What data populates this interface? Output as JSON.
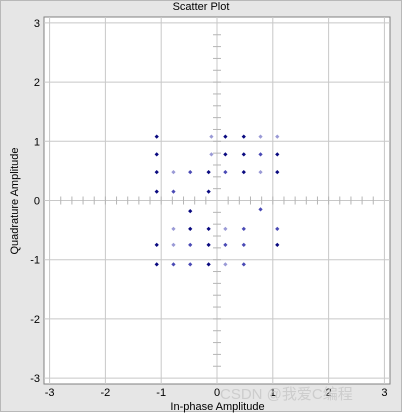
{
  "watermark": "CSDN @我爱C编程",
  "chart_data": {
    "type": "scatter",
    "title": "Scatter Plot",
    "xlabel": "In-phase Amplitude",
    "ylabel": "Quadrature Amplitude",
    "xlim": [
      -3.1,
      3.1
    ],
    "ylim": [
      -3.1,
      3.1
    ],
    "xticks": [
      "-3",
      "-2",
      "-1",
      "0",
      "1",
      "2",
      "3"
    ],
    "yticks": [
      "-3",
      "-2",
      "-1",
      "0",
      "1",
      "2",
      "3"
    ],
    "grid": true,
    "colors": {
      "dark": "#0a0a80",
      "mid": "#4a4ab5",
      "light": "#9a9ad6",
      "grid": "#c8c8c8",
      "axis_ticks": "#b5b5b5",
      "plot_bg": "#ffffff"
    },
    "points": [
      {
        "x": -1.08,
        "y": 1.08,
        "tone": "dark"
      },
      {
        "x": -0.1,
        "y": 1.08,
        "tone": "light"
      },
      {
        "x": 0.15,
        "y": 1.08,
        "tone": "dark"
      },
      {
        "x": 0.48,
        "y": 1.08,
        "tone": "dark"
      },
      {
        "x": 0.78,
        "y": 1.08,
        "tone": "light"
      },
      {
        "x": 1.08,
        "y": 1.08,
        "tone": "light"
      },
      {
        "x": -1.08,
        "y": 0.78,
        "tone": "dark"
      },
      {
        "x": -0.1,
        "y": 0.78,
        "tone": "light"
      },
      {
        "x": 0.15,
        "y": 0.78,
        "tone": "dark"
      },
      {
        "x": 0.48,
        "y": 0.78,
        "tone": "dark"
      },
      {
        "x": 0.78,
        "y": 0.78,
        "tone": "mid"
      },
      {
        "x": 1.08,
        "y": 0.78,
        "tone": "dark"
      },
      {
        "x": -1.08,
        "y": 0.48,
        "tone": "dark"
      },
      {
        "x": -0.78,
        "y": 0.48,
        "tone": "light"
      },
      {
        "x": -0.48,
        "y": 0.48,
        "tone": "mid"
      },
      {
        "x": -0.15,
        "y": 0.48,
        "tone": "dark"
      },
      {
        "x": 0.15,
        "y": 0.48,
        "tone": "mid"
      },
      {
        "x": 0.48,
        "y": 0.48,
        "tone": "dark"
      },
      {
        "x": 0.78,
        "y": 0.48,
        "tone": "light"
      },
      {
        "x": 1.08,
        "y": 0.48,
        "tone": "dark"
      },
      {
        "x": -1.08,
        "y": 0.15,
        "tone": "dark"
      },
      {
        "x": -0.78,
        "y": 0.15,
        "tone": "mid"
      },
      {
        "x": -0.15,
        "y": 0.15,
        "tone": "dark"
      },
      {
        "x": 0.78,
        "y": -0.15,
        "tone": "mid"
      },
      {
        "x": -0.48,
        "y": -0.18,
        "tone": "dark"
      },
      {
        "x": -0.78,
        "y": -0.48,
        "tone": "light"
      },
      {
        "x": -0.48,
        "y": -0.48,
        "tone": "dark"
      },
      {
        "x": -0.15,
        "y": -0.48,
        "tone": "dark"
      },
      {
        "x": 0.15,
        "y": -0.48,
        "tone": "light"
      },
      {
        "x": 0.48,
        "y": -0.48,
        "tone": "mid"
      },
      {
        "x": 1.08,
        "y": -0.48,
        "tone": "mid"
      },
      {
        "x": -1.08,
        "y": -0.75,
        "tone": "dark"
      },
      {
        "x": -0.78,
        "y": -0.75,
        "tone": "light"
      },
      {
        "x": -0.48,
        "y": -0.75,
        "tone": "mid"
      },
      {
        "x": -0.15,
        "y": -0.75,
        "tone": "dark"
      },
      {
        "x": 0.15,
        "y": -0.75,
        "tone": "mid"
      },
      {
        "x": 0.48,
        "y": -0.75,
        "tone": "mid"
      },
      {
        "x": 1.08,
        "y": -0.75,
        "tone": "dark"
      },
      {
        "x": -1.08,
        "y": -1.08,
        "tone": "dark"
      },
      {
        "x": -0.78,
        "y": -1.08,
        "tone": "mid"
      },
      {
        "x": -0.48,
        "y": -1.08,
        "tone": "mid"
      },
      {
        "x": -0.15,
        "y": -1.08,
        "tone": "dark"
      },
      {
        "x": 0.15,
        "y": -1.08,
        "tone": "light"
      },
      {
        "x": 0.48,
        "y": -1.08,
        "tone": "mid"
      }
    ]
  }
}
